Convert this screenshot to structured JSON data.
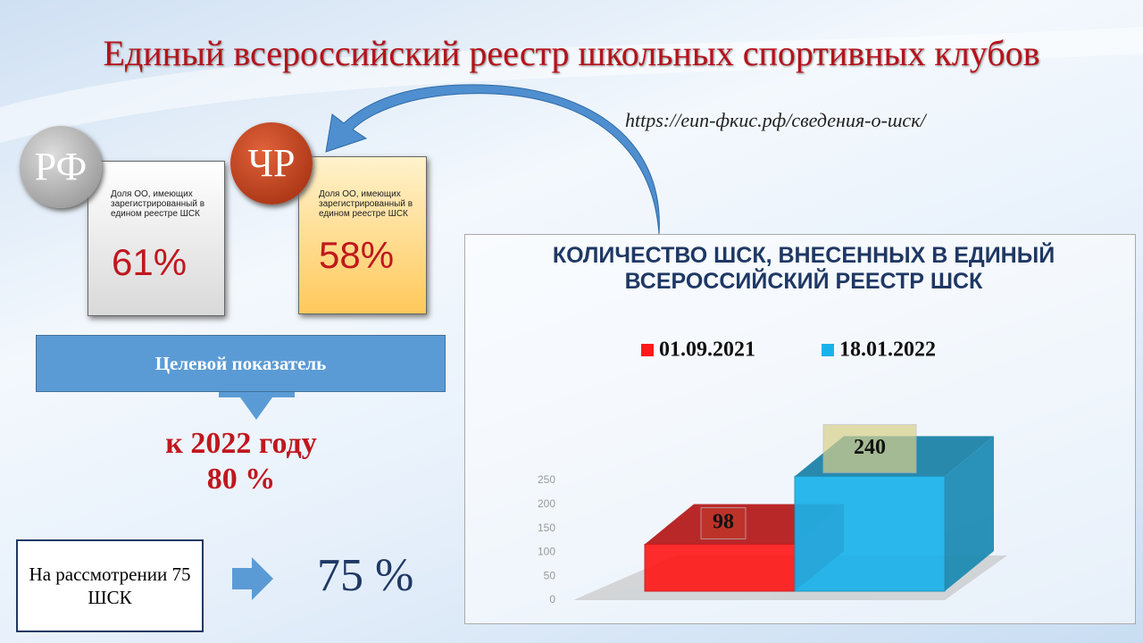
{
  "title": "Единый всероссийский реестр школьных спортивных клубов",
  "url": "https://еип-фкис.рф/сведения-о-шск/",
  "cards": [
    {
      "badge": "РФ",
      "text": "Доля ОО, имеющих зарегистрированный в едином реестре ШСК",
      "value": "61%"
    },
    {
      "badge": "ЧР",
      "text": "Доля ОО, имеющих зарегистрированный в едином реестре ШСК",
      "value": "58%"
    }
  ],
  "target": {
    "label": "Целевой показатель",
    "year": "к 2022 году",
    "value": "80 %"
  },
  "pending": {
    "text": "На рассмотрении 75 ШСК",
    "value": "75 %"
  },
  "chart_data": {
    "type": "bar3d",
    "title": "КОЛИЧЕСТВО ШСК, ВНЕСЕННЫХ В ЕДИНЫЙ ВСЕРОССИЙСКИЙ РЕЕСТР ШСК",
    "series": [
      {
        "name": "01.09.2021",
        "color": "#ff1a1a",
        "values": [
          98
        ]
      },
      {
        "name": "18.01.2022",
        "color": "#1ab2ea",
        "values": [
          240
        ]
      }
    ],
    "ylim": [
      0,
      250
    ],
    "yticks": [
      0,
      50,
      100,
      150,
      200,
      250
    ]
  }
}
